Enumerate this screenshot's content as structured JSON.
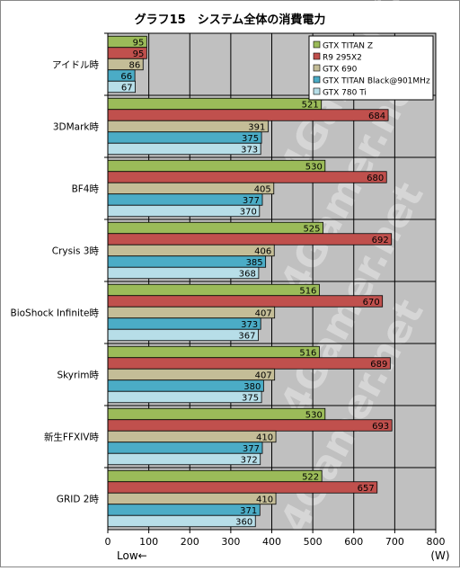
{
  "chart_data": {
    "type": "bar",
    "orientation": "horizontal",
    "title": "グラフ15　システム全体の消費電力",
    "categories": [
      "アイドル時",
      "3DMark時",
      "BF4時",
      "Crysis 3時",
      "BioShock Infinite時",
      "Skyrim時",
      "新生FFXIV時",
      "GRID 2時"
    ],
    "series": [
      {
        "name": "GTX TITAN Z",
        "color": "#9bbb59",
        "values": [
          95,
          521,
          530,
          525,
          516,
          516,
          530,
          522
        ]
      },
      {
        "name": "R9 295X2",
        "color": "#c0504d",
        "values": [
          95,
          684,
          680,
          692,
          670,
          689,
          693,
          657
        ]
      },
      {
        "name": "GTX 690",
        "color": "#c4bd97",
        "values": [
          86,
          391,
          405,
          406,
          407,
          407,
          410,
          410
        ]
      },
      {
        "name": "GTX TITAN Black@901MHz",
        "color": "#4bacc6",
        "values": [
          66,
          375,
          377,
          385,
          373,
          380,
          377,
          371
        ]
      },
      {
        "name": "GTX 780 Ti",
        "color": "#b7dee8",
        "values": [
          67,
          373,
          370,
          368,
          367,
          375,
          372,
          360
        ]
      }
    ],
    "xlim": [
      0,
      800
    ],
    "xticks": [
      0,
      100,
      200,
      300,
      400,
      500,
      600,
      700,
      800
    ],
    "xlabel_left": "Low←",
    "xlabel_right": "(W)",
    "grid": true,
    "legend_position": "top-right",
    "plot_background": "#c0c0c0",
    "watermark": "4Gamer.net"
  }
}
